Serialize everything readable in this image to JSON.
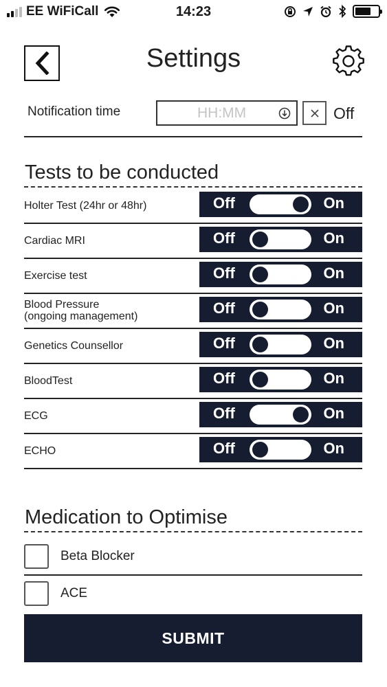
{
  "status_bar": {
    "carrier": "EE WiFiCall",
    "time": "14:23"
  },
  "header": {
    "title": "Settings",
    "back_icon": "chevron-left-icon",
    "settings_icon": "gear-icon"
  },
  "notification": {
    "label": "Notification time",
    "placeholder": "HH:MM",
    "off_label": "Off"
  },
  "tests": {
    "title": "Tests to be conducted",
    "off_label": "Off",
    "on_label": "On",
    "items": [
      {
        "label": "Holter Test (24hr or 48hr)",
        "on": true
      },
      {
        "label": "Cardiac MRI",
        "on": false
      },
      {
        "label": "Exercise test",
        "on": false
      },
      {
        "label": "Blood Pressure",
        "label2": "(ongoing management)",
        "on": false
      },
      {
        "label": "Genetics Counsellor",
        "on": false
      },
      {
        "label": "BloodTest",
        "on": false
      },
      {
        "label": "ECG",
        "on": true
      },
      {
        "label": "ECHO",
        "on": false
      }
    ]
  },
  "medication": {
    "title": "Medication to Optimise",
    "items": [
      {
        "label": "Beta Blocker",
        "checked": false
      },
      {
        "label": "ACE",
        "checked": false
      }
    ]
  },
  "submit_label": "SUBMIT",
  "colors": {
    "primary": "#161d31",
    "text": "#222222"
  }
}
